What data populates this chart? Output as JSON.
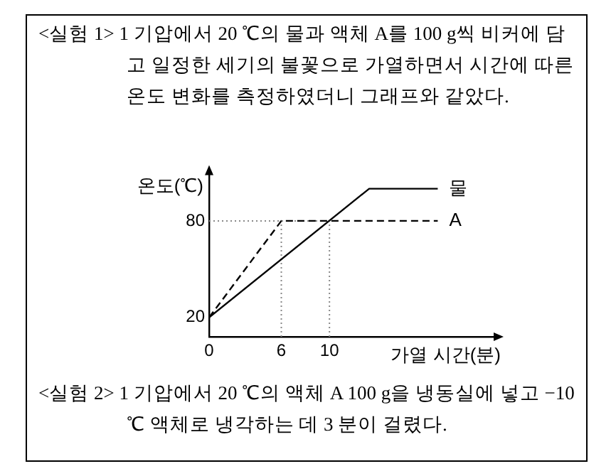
{
  "chart_data": {
    "type": "line",
    "title": "<실험 1> 1 기압에서 20 ℃의 물과 액체 A를 100 g씩 비커에 담고 일정한 세기의 불꽃으로 가열하면서 시간에 따른 온도 변화를 측정하였더니 그래프와 같았다.",
    "xlabel": "가열 시간(분)",
    "ylabel": "온도(℃)",
    "series": [
      {
        "name": "물",
        "color": "#000000",
        "x": [
          0,
          13.3,
          19
        ],
        "values": [
          20,
          100,
          100
        ],
        "line_style": "solid"
      },
      {
        "name": "A",
        "color": "#000000",
        "x": [
          0,
          6,
          19
        ],
        "values": [
          20,
          80,
          80
        ],
        "line_style": "dashed"
      }
    ],
    "xlim": [
      0,
      24
    ],
    "xticks": [
      0,
      6,
      10
    ],
    "ylim": [
      8,
      112
    ],
    "yticks": [
      20,
      80
    ],
    "ref_lines": [
      {
        "axis": "y",
        "value": 80,
        "color": "#888888",
        "line_style": "dotted"
      },
      {
        "axis": "x",
        "value": 6,
        "color": "#888888",
        "line_style": "dotted"
      },
      {
        "axis": "x",
        "value": 10,
        "color": "#888888",
        "line_style": "dotted"
      }
    ],
    "annotations": [
      "<실험 2> 1 기압에서 20 ℃의 액체 A 100 g을 냉동실에 넣고 −10 ℃ 액체로 냉각하는 데 3 분이 걸렸다."
    ],
    "grid": false,
    "legend": false,
    "marker": "none"
  }
}
